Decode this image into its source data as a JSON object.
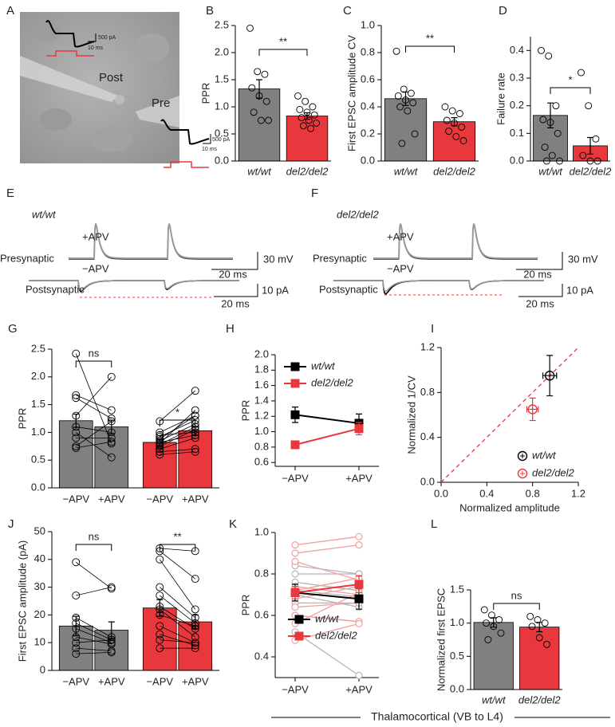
{
  "image_panel": {
    "label": "A",
    "cells": [
      "Post",
      "Pre"
    ],
    "scale_bars": [
      [
        "500 pA",
        "10 ms"
      ],
      [
        "500 pA",
        "10 ms"
      ]
    ]
  },
  "trace_panels": [
    {
      "label": "E",
      "genotype": "wt/wt",
      "conditions": [
        "+APV",
        "−APV"
      ],
      "rows": [
        "Presynaptic",
        "Postsynaptic"
      ],
      "scale_bars": [
        [
          "30 mV",
          "20 ms"
        ],
        [
          "10 pA",
          "20 ms"
        ]
      ]
    },
    {
      "label": "F",
      "genotype": "del2/del2",
      "conditions": [
        "+APV",
        "−APV"
      ],
      "rows": [
        "Presynaptic",
        "Postsynaptic"
      ],
      "scale_bars": [
        [
          "30 mV",
          "20 ms"
        ],
        [
          "10 pA",
          "20 ms"
        ]
      ]
    }
  ],
  "chart_data": [
    {
      "label": "B",
      "type": "bar",
      "ylabel": "PPR",
      "categories": [
        "wt/wt",
        "del2/del2"
      ],
      "colors": [
        "#808080",
        "#e8383d"
      ],
      "values": [
        1.33,
        0.83
      ],
      "errors": [
        0.17,
        0.06
      ],
      "points": [
        [
          2.45,
          1.65,
          1.6,
          1.35,
          1.2,
          1.1,
          0.9,
          0.75,
          0.75
        ],
        [
          1.2,
          1.1,
          1.0,
          0.95,
          0.9,
          0.85,
          0.8,
          0.75,
          0.7,
          0.65,
          0.6
        ]
      ],
      "ylim": [
        0,
        2.5
      ],
      "yticks": [
        {
          "value": 0,
          "label": "0.0"
        },
        0.5,
        {
          "value": 1,
          "label": "1.0"
        },
        1.5,
        {
          "value": 2,
          "label": "2.0"
        },
        2.5
      ],
      "significance": "**"
    },
    {
      "label": "C",
      "type": "bar",
      "ylabel": "First EPSC amplitude CV",
      "categories": [
        "wt/wt",
        "del2/del2"
      ],
      "colors": [
        "#808080",
        "#e8383d"
      ],
      "values": [
        0.46,
        0.29
      ],
      "errors": [
        0.05,
        0.03
      ],
      "points": [
        [
          0.81,
          0.53,
          0.5,
          0.48,
          0.45,
          0.43,
          0.4,
          0.37,
          0.2,
          0.13
        ],
        [
          0.4,
          0.37,
          0.35,
          0.3,
          0.28,
          0.25,
          0.22,
          0.18,
          0.15
        ]
      ],
      "ylim": [
        0,
        1
      ],
      "yticks": [
        {
          "value": 0,
          "label": "0.0"
        },
        0.2,
        0.4,
        0.6,
        0.8,
        {
          "value": 1,
          "label": "1.0"
        }
      ],
      "significance": "**"
    },
    {
      "label": "D",
      "type": "bar",
      "ylabel": "Failure rate",
      "categories": [
        "wt/wt",
        "del2/del2"
      ],
      "colors": [
        "#808080",
        "#e8383d"
      ],
      "values": [
        0.165,
        0.055
      ],
      "errors": [
        0.045,
        0.03
      ],
      "points": [
        [
          0.4,
          0.38,
          0.2,
          0.15,
          0.14,
          0.1,
          0.05,
          0.02,
          0,
          0
        ],
        [
          0.32,
          0.2,
          0.08,
          0.02,
          0,
          0
        ]
      ],
      "ylim": [
        0,
        0.45
      ],
      "yticks": [
        {
          "value": 0,
          "label": "0.0"
        },
        0.1,
        0.2,
        0.3,
        0.4
      ],
      "significance": "*"
    },
    {
      "label": "G",
      "type": "paired_bar",
      "ylabel": "PPR",
      "categories": [
        "−APV",
        "+APV"
      ],
      "series": [
        {
          "color": "#808080",
          "values": [
            1.21,
            1.1
          ],
          "errors": [
            0.12,
            0.12
          ],
          "significance": "ns",
          "pairs": [
            [
              2.42,
              0.8
            ],
            [
              1.67,
              1.4
            ],
            [
              1.62,
              1.25
            ],
            [
              1.3,
              2.0
            ],
            [
              1.1,
              1.0
            ],
            [
              1.0,
              0.55
            ],
            [
              0.9,
              0.9
            ],
            [
              0.75,
              1.2
            ],
            [
              0.72,
              0.83
            ]
          ]
        },
        {
          "color": "#e8383d",
          "values": [
            0.82,
            1.03
          ],
          "errors": [
            0.06,
            0.08
          ],
          "significance": "*",
          "pairs": [
            [
              1.2,
              1.75
            ],
            [
              1.0,
              1.3
            ],
            [
              0.95,
              1.0
            ],
            [
              0.92,
              1.22
            ],
            [
              0.88,
              1.3
            ],
            [
              0.85,
              1.15
            ],
            [
              0.82,
              0.95
            ],
            [
              0.8,
              1.4
            ],
            [
              0.78,
              1.1
            ],
            [
              0.75,
              1.05
            ],
            [
              0.7,
              0.9
            ],
            [
              0.65,
              0.7
            ],
            [
              0.6,
              0.65
            ]
          ]
        }
      ],
      "ylim": [
        0,
        2.5
      ],
      "yticks": [
        {
          "value": 0,
          "label": "0.0"
        },
        0.5,
        {
          "value": 1,
          "label": "1.0"
        },
        1.5,
        {
          "value": 2,
          "label": "2.0"
        },
        2.5
      ]
    },
    {
      "label": "H",
      "type": "line",
      "ylabel": "PPR",
      "categories": [
        "−APV",
        "+APV"
      ],
      "series": [
        {
          "name": "wt/wt",
          "color": "#000000",
          "values": [
            1.22,
            1.11
          ],
          "errors": [
            0.1,
            0.12
          ]
        },
        {
          "name": "del2/del2",
          "color": "#e8383d",
          "values": [
            0.83,
            1.04
          ],
          "errors": [
            0.05,
            0.08
          ]
        }
      ],
      "ylim": [
        0.55,
        2.0
      ],
      "yticks": [
        0.6,
        0.8,
        {
          "value": 1,
          "label": "1.0"
        },
        1.2,
        1.4,
        1.6,
        1.8,
        {
          "value": 2,
          "label": "2.0"
        }
      ]
    },
    {
      "label": "I",
      "type": "scatter",
      "xlabel": "Normalized amplitude",
      "ylabel": "Normalized 1/CV",
      "series": [
        {
          "name": "wt/wt",
          "color": "#000000",
          "x": [
            0.95
          ],
          "values": [
            0.95
          ],
          "xerrors": [
            0.06
          ],
          "errors": [
            0.18
          ]
        },
        {
          "name": "del2/del2",
          "color": "#e8383d",
          "x": [
            0.8
          ],
          "values": [
            0.65
          ],
          "xerrors": [
            0.05
          ],
          "errors": [
            0.1
          ]
        }
      ],
      "xlim": [
        0,
        1.2
      ],
      "ylim": [
        0,
        1.2
      ],
      "xticks": [
        {
          "value": 0,
          "label": "0.0"
        },
        0.4,
        0.8,
        1.2
      ],
      "yticks": [
        {
          "value": 0,
          "label": "0.0"
        },
        0.4,
        0.8,
        1.2
      ]
    },
    {
      "label": "J",
      "type": "paired_bar",
      "ylabel": "First EPSC amplitude (pA)",
      "categories": [
        "−APV",
        "+APV"
      ],
      "series": [
        {
          "color": "#808080",
          "values": [
            16,
            14.5
          ],
          "errors": [
            3.5,
            3
          ],
          "significance": "ns",
          "pairs": [
            [
              39,
              29.5
            ],
            [
              27,
              30
            ],
            [
              19,
              12
            ],
            [
              17,
              11
            ],
            [
              15,
              10
            ],
            [
              12,
              9.5
            ],
            [
              10,
              11
            ],
            [
              8,
              7
            ],
            [
              6,
              6.5
            ]
          ]
        },
        {
          "color": "#e8383d",
          "values": [
            22.5,
            17.5
          ],
          "errors": [
            3,
            2.5
          ],
          "significance": "**",
          "pairs": [
            [
              44,
              43
            ],
            [
              43,
              33
            ],
            [
              40,
              22
            ],
            [
              30,
              19
            ],
            [
              27,
              17
            ],
            [
              23,
              15
            ],
            [
              22,
              12
            ],
            [
              20,
              16
            ],
            [
              16,
              10
            ],
            [
              13,
              9
            ],
            [
              11,
              10
            ],
            [
              8,
              8
            ]
          ]
        }
      ],
      "ylim": [
        0,
        50
      ],
      "yticks": [
        0,
        10,
        20,
        30,
        40,
        50
      ]
    },
    {
      "label": "K",
      "type": "line",
      "ylabel": "PPR",
      "categories": [
        "−APV",
        "+APV"
      ],
      "series": [
        {
          "name": "wt/wt",
          "color": "#000000",
          "values": [
            0.71,
            0.68
          ],
          "errors": [
            0.04,
            0.05
          ],
          "pair_color": "#b5b5b5",
          "pairs": [
            [
              0.84,
              0.8
            ],
            [
              0.8,
              0.8
            ],
            [
              0.76,
              0.72
            ],
            [
              0.72,
              0.69
            ],
            [
              0.7,
              0.64
            ],
            [
              0.66,
              0.66
            ],
            [
              0.6,
              0.57
            ],
            [
              0.52,
              0.31
            ]
          ]
        },
        {
          "name": "del2/del2",
          "color": "#e8383d",
          "values": [
            0.71,
            0.75
          ],
          "errors": [
            0.03,
            0.04
          ],
          "pair_color": "#f2a0a0",
          "pairs": [
            [
              0.94,
              0.98
            ],
            [
              0.9,
              0.94
            ],
            [
              0.86,
              0.77
            ],
            [
              0.74,
              0.7
            ],
            [
              0.72,
              0.78
            ],
            [
              0.68,
              0.74
            ],
            [
              0.64,
              0.66
            ],
            [
              0.6,
              0.57
            ],
            [
              0.56,
              0.71
            ],
            [
              0.48,
              0.56
            ]
          ]
        }
      ],
      "ylim": [
        0.3,
        1.0
      ],
      "yticks": [
        0.4,
        0.6,
        0.8,
        {
          "value": 1,
          "label": "1.0"
        }
      ]
    },
    {
      "label": "L",
      "type": "bar",
      "ylabel": "Normalized first EPSC",
      "categories": [
        "wt/wt",
        "del2/del2"
      ],
      "colors": [
        "#808080",
        "#e8383d"
      ],
      "values": [
        1.01,
        0.94
      ],
      "errors": [
        0.07,
        0.07
      ],
      "points": [
        [
          1.2,
          1.12,
          1.05,
          1.0,
          0.95,
          0.85,
          0.75
        ],
        [
          1.1,
          1.05,
          1.0,
          0.95,
          0.78,
          0.68
        ]
      ],
      "ylim": [
        0,
        1.5
      ],
      "yticks": [
        {
          "value": 0,
          "label": "0.0"
        },
        0.5,
        {
          "value": 1,
          "label": "1.0"
        },
        1.5
      ],
      "significance": "ns"
    }
  ],
  "footer": "Thalamocortical (VB to L4)"
}
